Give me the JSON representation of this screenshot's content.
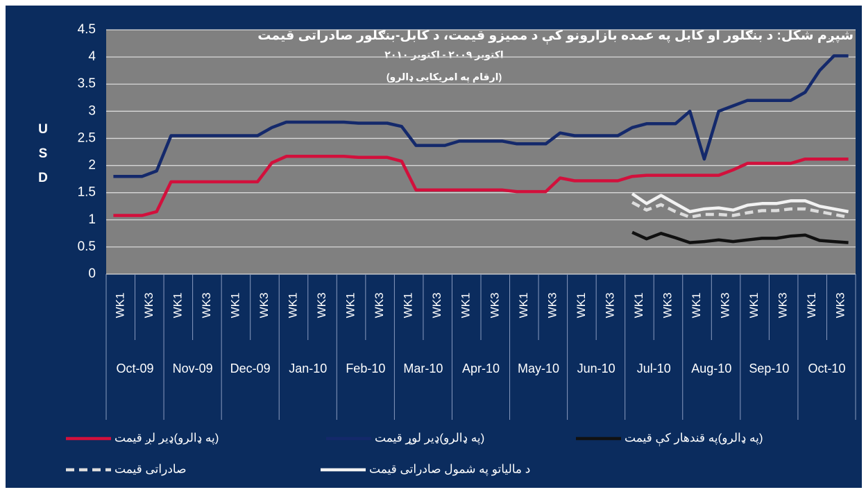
{
  "chart_data": {
    "type": "line",
    "title": "شپږم شکل: د بنګلور او کابل په عمده بازارونو کې د ممیزو قیمت، د کابل-بنګلور صادراتی قیمت",
    "subtitle": "اکتوبر ۲۰۰۹ - اکتوبر ۲۰۱۰",
    "note": "(ارقام په امریکایی ډالرو)",
    "y_label": "USD",
    "months": [
      "Oct-09",
      "Nov-09",
      "Dec-09",
      "Jan-10",
      "Feb-10",
      "Mar-10",
      "Apr-10",
      "May-10",
      "Jun-10",
      "Jul-10",
      "Aug-10",
      "Sep-10",
      "Oct-10"
    ],
    "categories": [
      "WK1",
      null,
      "WK3",
      null,
      "WK1",
      null,
      "WK3",
      null,
      "WK1",
      null,
      "WK3",
      null,
      "WK1",
      null,
      "WK3",
      null,
      "WK1",
      null,
      "WK3",
      null,
      "WK1",
      null,
      "WK3",
      null,
      "WK1",
      null,
      "WK3",
      null,
      "WK1",
      null,
      "WK3",
      null,
      "WK1",
      null,
      "WK3",
      null,
      "WK1",
      null,
      "WK3",
      null,
      "WK1",
      null,
      "WK3",
      null,
      "WK1",
      null,
      "WK3",
      null,
      "WK1",
      null,
      "WK3",
      null
    ],
    "ylim": [
      0,
      4.5
    ],
    "yticks": [
      0,
      0.5,
      1,
      1.5,
      2,
      2.5,
      3,
      3.5,
      4,
      4.5
    ],
    "grid": true,
    "series": [
      {
        "name": "(په ډالرو)ډیر لږ قیمت",
        "color": "#d2103c",
        "dashed": false,
        "values": [
          1.08,
          1.08,
          1.08,
          1.15,
          1.7,
          1.7,
          1.7,
          1.7,
          1.7,
          1.7,
          1.7,
          2.05,
          2.17,
          2.17,
          2.17,
          2.17,
          2.17,
          2.15,
          2.15,
          2.15,
          2.08,
          1.55,
          1.55,
          1.55,
          1.55,
          1.55,
          1.55,
          1.55,
          1.52,
          1.52,
          1.52,
          1.77,
          1.72,
          1.72,
          1.72,
          1.72,
          1.8,
          1.82,
          1.82,
          1.82,
          1.82,
          1.82,
          1.82,
          1.92,
          2.04,
          2.04,
          2.04,
          2.04,
          2.12,
          2.12,
          2.12,
          2.12
        ]
      },
      {
        "name": "(په ډالرو)ډیر لوړ قیمت",
        "color": "#14296b",
        "dashed": false,
        "values": [
          1.8,
          1.8,
          1.8,
          1.9,
          2.55,
          2.55,
          2.55,
          2.55,
          2.55,
          2.55,
          2.55,
          2.7,
          2.8,
          2.8,
          2.8,
          2.8,
          2.8,
          2.78,
          2.78,
          2.78,
          2.72,
          2.37,
          2.37,
          2.37,
          2.45,
          2.45,
          2.45,
          2.45,
          2.4,
          2.4,
          2.4,
          2.6,
          2.55,
          2.55,
          2.55,
          2.55,
          2.7,
          2.77,
          2.77,
          2.77,
          3.0,
          2.12,
          3.0,
          3.1,
          3.2,
          3.2,
          3.2,
          3.2,
          3.35,
          3.75,
          4.02,
          4.02
        ]
      },
      {
        "name": "(په ډالرو)په قندهار کې قیمت",
        "color": "#111111",
        "dashed": false,
        "values": [
          null,
          null,
          null,
          null,
          null,
          null,
          null,
          null,
          null,
          null,
          null,
          null,
          null,
          null,
          null,
          null,
          null,
          null,
          null,
          null,
          null,
          null,
          null,
          null,
          null,
          null,
          null,
          null,
          null,
          null,
          null,
          null,
          null,
          null,
          null,
          null,
          0.77,
          0.65,
          0.75,
          0.67,
          0.58,
          0.6,
          0.63,
          0.6,
          0.63,
          0.66,
          0.66,
          0.7,
          0.72,
          0.62,
          0.6,
          0.58
        ]
      },
      {
        "name": "صادراتی قیمت",
        "color": "#dddddd",
        "dashed": true,
        "values": [
          null,
          null,
          null,
          null,
          null,
          null,
          null,
          null,
          null,
          null,
          null,
          null,
          null,
          null,
          null,
          null,
          null,
          null,
          null,
          null,
          null,
          null,
          null,
          null,
          null,
          null,
          null,
          null,
          null,
          null,
          null,
          null,
          null,
          null,
          null,
          null,
          1.32,
          1.18,
          1.28,
          1.15,
          1.05,
          1.1,
          1.1,
          1.08,
          1.13,
          1.17,
          1.17,
          1.2,
          1.2,
          1.15,
          1.1,
          1.05
        ]
      },
      {
        "name": "د مالیاتو په شمول صادراتی قیمت",
        "color": "#f2f2f2",
        "dashed": false,
        "values": [
          null,
          null,
          null,
          null,
          null,
          null,
          null,
          null,
          null,
          null,
          null,
          null,
          null,
          null,
          null,
          null,
          null,
          null,
          null,
          null,
          null,
          null,
          null,
          null,
          null,
          null,
          null,
          null,
          null,
          null,
          null,
          null,
          null,
          null,
          null,
          null,
          1.48,
          1.3,
          1.45,
          1.3,
          1.15,
          1.2,
          1.22,
          1.18,
          1.27,
          1.3,
          1.3,
          1.35,
          1.35,
          1.25,
          1.2,
          1.15
        ]
      }
    ]
  }
}
